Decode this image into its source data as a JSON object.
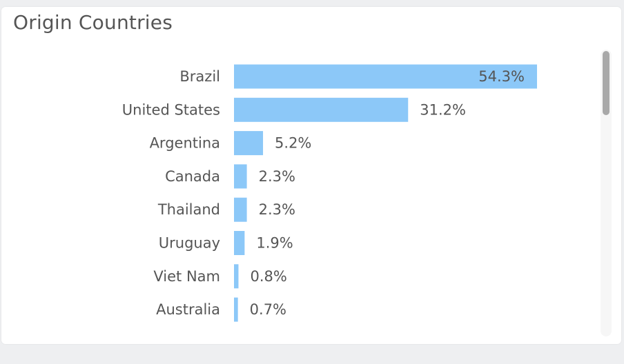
{
  "title": "Origin Countries",
  "chart_data": {
    "type": "bar",
    "orientation": "horizontal",
    "categories": [
      "Brazil",
      "United States",
      "Argentina",
      "Canada",
      "Thailand",
      "Uruguay",
      "Viet Nam",
      "Australia"
    ],
    "values": [
      54.3,
      31.2,
      5.2,
      2.3,
      2.3,
      1.9,
      0.8,
      0.7
    ],
    "value_labels": [
      "54.3%",
      "31.2%",
      "5.2%",
      "2.3%",
      "2.3%",
      "1.9%",
      "0.8%",
      "0.7%"
    ],
    "unit": "%",
    "title": "Origin Countries",
    "xlabel": "",
    "ylabel": "",
    "xlim": [
      0,
      54.3
    ],
    "grid": false,
    "legend": "none",
    "bar_color": "#8cc8f8",
    "label_color": "#555555"
  }
}
